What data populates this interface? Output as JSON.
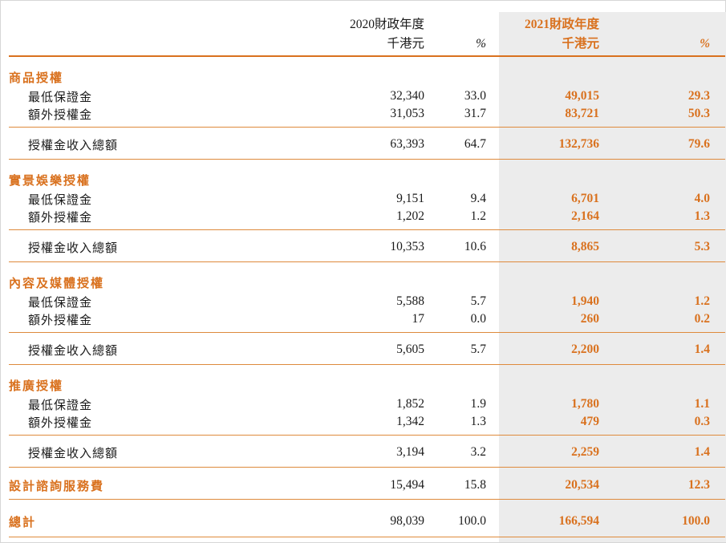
{
  "colors": {
    "accent": "#D9711E",
    "rule_orange": "#DE8A3C",
    "highlight_band": "#ECECEC",
    "text": "#1A1A1A"
  },
  "table": {
    "header": {
      "y2020": {
        "title": "2020財政年度",
        "unit": "千港元",
        "pct": "%"
      },
      "y2021": {
        "title": "2021財政年度",
        "unit": "千港元",
        "pct": "%"
      }
    },
    "rows": [
      {
        "id": "merchandise-licensing",
        "type": "section",
        "label": "商品授權"
      },
      {
        "id": "merchandise-min-guarantee",
        "type": "item",
        "label": "最低保證金",
        "v2020": "32,340",
        "p2020": "33.0",
        "v2021": "49,015",
        "p2021": "29.3"
      },
      {
        "id": "merchandise-additional-royalties",
        "type": "item",
        "label": "額外授權金",
        "v2020": "31,053",
        "p2020": "31.7",
        "v2021": "83,721",
        "p2021": "50.3",
        "rule": "items"
      },
      {
        "id": "merchandise-total-royalty-income",
        "type": "subtotal",
        "label": "授權金收入總額",
        "v2020": "63,393",
        "p2020": "64.7",
        "v2021": "132,736",
        "p2021": "79.6",
        "rule": "subtotal"
      },
      {
        "id": "location-entertainment-licensing",
        "type": "section",
        "label": "實景娛樂授權"
      },
      {
        "id": "location-min-guarantee",
        "type": "item",
        "label": "最低保證金",
        "v2020": "9,151",
        "p2020": "9.4",
        "v2021": "6,701",
        "p2021": "4.0"
      },
      {
        "id": "location-additional-royalties",
        "type": "item",
        "label": "額外授權金",
        "v2020": "1,202",
        "p2020": "1.2",
        "v2021": "2,164",
        "p2021": "1.3",
        "rule": "items"
      },
      {
        "id": "location-total-royalty-income",
        "type": "subtotal",
        "label": "授權金收入總額",
        "v2020": "10,353",
        "p2020": "10.6",
        "v2021": "8,865",
        "p2021": "5.3",
        "rule": "subtotal"
      },
      {
        "id": "content-media-licensing",
        "type": "section",
        "label": "內容及媒體授權"
      },
      {
        "id": "content-min-guarantee",
        "type": "item",
        "label": "最低保證金",
        "v2020": "5,588",
        "p2020": "5.7",
        "v2021": "1,940",
        "p2021": "1.2"
      },
      {
        "id": "content-additional-royalties",
        "type": "item",
        "label": "額外授權金",
        "v2020": "17",
        "p2020": "0.0",
        "v2021": "260",
        "p2021": "0.2",
        "rule": "items"
      },
      {
        "id": "content-total-royalty-income",
        "type": "subtotal",
        "label": "授權金收入總額",
        "v2020": "5,605",
        "p2020": "5.7",
        "v2021": "2,200",
        "p2021": "1.4",
        "rule": "subtotal"
      },
      {
        "id": "promotional-licensing",
        "type": "section",
        "label": "推廣授權"
      },
      {
        "id": "promo-min-guarantee",
        "type": "item",
        "label": "最低保證金",
        "v2020": "1,852",
        "p2020": "1.9",
        "v2021": "1,780",
        "p2021": "1.1"
      },
      {
        "id": "promo-additional-royalties",
        "type": "item",
        "label": "額外授權金",
        "v2020": "1,342",
        "p2020": "1.3",
        "v2021": "479",
        "p2021": "0.3",
        "rule": "items"
      },
      {
        "id": "promo-total-royalty-income",
        "type": "subtotal",
        "label": "授權金收入總額",
        "v2020": "3,194",
        "p2020": "3.2",
        "v2021": "2,259",
        "p2021": "1.4",
        "rule": "subtotal"
      },
      {
        "id": "design-consultancy-service-fees",
        "type": "single",
        "label": "設計諮詢服務費",
        "v2020": "15,494",
        "p2020": "15.8",
        "v2021": "20,534",
        "p2021": "12.3",
        "rule": "single"
      },
      {
        "id": "grand-total",
        "type": "grand",
        "label": "總計",
        "v2020": "98,039",
        "p2020": "100.0",
        "v2021": "166,594",
        "p2021": "100.0",
        "rule": "grand"
      }
    ]
  }
}
